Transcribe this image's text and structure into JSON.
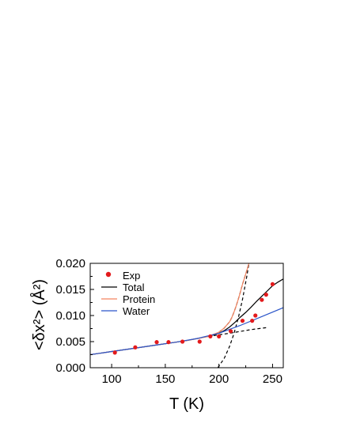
{
  "chart_data": {
    "type": "line",
    "xlabel": "T (K)",
    "ylabel": "<δx²> (Å²)",
    "xlim": [
      80,
      260
    ],
    "ylim": [
      0,
      0.02
    ],
    "xticks": [
      100,
      150,
      200,
      250
    ],
    "yticks": [
      0.0,
      0.005,
      0.01,
      0.015,
      0.02
    ],
    "xtick_labels": [
      "100",
      "150",
      "200",
      "250"
    ],
    "ytick_labels": [
      "0.000",
      "0.005",
      "0.010",
      "0.015",
      "0.020"
    ],
    "grid": false,
    "legend_position": "top-left",
    "series": [
      {
        "name": "Exp",
        "kind": "scatter",
        "color": "#e31a1c",
        "x": [
          103,
          122,
          142,
          153,
          166,
          182,
          192,
          200,
          211,
          222,
          231,
          234,
          240,
          244,
          250
        ],
        "y": [
          0.0029,
          0.0039,
          0.0049,
          0.0049,
          0.005,
          0.005,
          0.006,
          0.006,
          0.007,
          0.009,
          0.009,
          0.01,
          0.013,
          0.014,
          0.016
        ]
      },
      {
        "name": "Total",
        "kind": "line",
        "color": "#000000",
        "x": [
          80,
          100,
          120,
          140,
          160,
          170,
          180,
          190,
          200,
          205,
          210,
          215,
          220,
          225,
          230,
          235,
          240,
          245,
          250,
          255,
          260
        ],
        "y": [
          0.0025,
          0.0031,
          0.0037,
          0.0043,
          0.0049,
          0.0052,
          0.0056,
          0.006,
          0.0066,
          0.0071,
          0.0078,
          0.0087,
          0.0097,
          0.0106,
          0.0116,
          0.0127,
          0.0137,
          0.0147,
          0.0157,
          0.0164,
          0.017
        ]
      },
      {
        "name": "Protein",
        "kind": "line",
        "color": "#f4845f",
        "x": [
          80,
          100,
          120,
          140,
          160,
          170,
          180,
          190,
          200,
          205,
          210,
          212,
          214,
          216,
          218,
          220,
          222,
          224,
          226,
          228
        ],
        "y": [
          0.0025,
          0.0031,
          0.0037,
          0.0043,
          0.0049,
          0.0052,
          0.0056,
          0.006,
          0.0068,
          0.0076,
          0.0088,
          0.0096,
          0.0106,
          0.0118,
          0.0131,
          0.0145,
          0.016,
          0.0173,
          0.0186,
          0.02
        ]
      },
      {
        "name": "Water",
        "kind": "line",
        "color": "#2b55c9",
        "x": [
          80,
          100,
          120,
          140,
          160,
          180,
          200,
          220,
          240,
          260
        ],
        "y": [
          0.0025,
          0.0031,
          0.0037,
          0.0043,
          0.0049,
          0.0056,
          0.0066,
          0.0081,
          0.0098,
          0.0115
        ]
      },
      {
        "name": "",
        "kind": "dashed",
        "color": "#000000",
        "x": [
          190,
          210,
          230,
          245
        ],
        "y": [
          0.006,
          0.0066,
          0.0073,
          0.0077
        ]
      },
      {
        "name": "",
        "kind": "dashed",
        "color": "#000000",
        "x": [
          199,
          205,
          210,
          214,
          218,
          222,
          226,
          228
        ],
        "y": [
          0.0,
          0.0018,
          0.0041,
          0.0065,
          0.0095,
          0.0131,
          0.0175,
          0.02
        ]
      },
      {
        "name": "",
        "kind": "dashed",
        "color": "#000000",
        "x": [
          200,
          205,
          210,
          212,
          214,
          216,
          218,
          220,
          222,
          224,
          226,
          228
        ],
        "y": [
          0.0068,
          0.0076,
          0.0088,
          0.0096,
          0.0106,
          0.0118,
          0.0131,
          0.0145,
          0.016,
          0.0173,
          0.0186,
          0.02
        ]
      }
    ]
  }
}
